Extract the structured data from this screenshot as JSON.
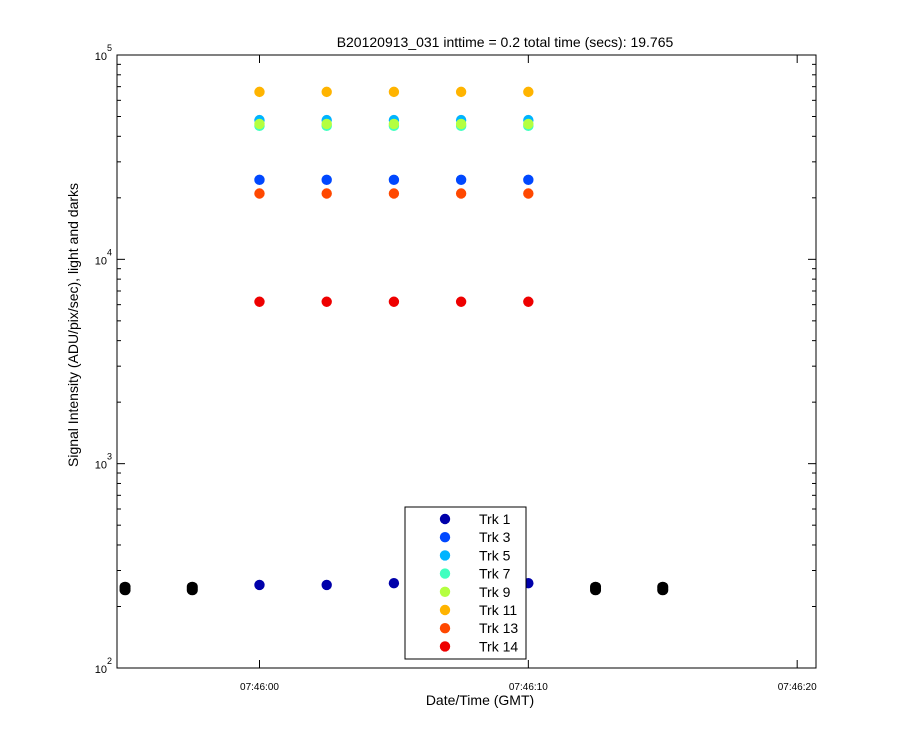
{
  "chart_data": {
    "type": "scatter",
    "title": "B20120913_031 inttime = 0.2 total time (secs): 19.765",
    "xlabel": "Date/Time (GMT)",
    "ylabel": "Signal Intensity (ADU/pix/sec), light and darks",
    "x_unit": "time",
    "xlim": [
      "07:45:54.7",
      "07:46:20.7"
    ],
    "x_ticks": [
      "07:46:00",
      "07:46:10",
      "07:46:20"
    ],
    "y_scale": "log",
    "ylim": [
      100,
      100000
    ],
    "y_ticks": [
      {
        "base": "10",
        "exp": "2",
        "value": 100
      },
      {
        "base": "10",
        "exp": "3",
        "value": 1000
      },
      {
        "base": "10",
        "exp": "4",
        "value": 10000
      },
      {
        "base": "10",
        "exp": "5",
        "value": 100000
      }
    ],
    "legend_position": "bottom-center",
    "series": [
      {
        "name": "Trk 1",
        "color": "#0000aa",
        "points": [
          [
            "07:46:00",
            255
          ],
          [
            "07:46:02.5",
            255
          ],
          [
            "07:46:05",
            260
          ],
          [
            "07:46:07.5",
            260
          ],
          [
            "07:46:10",
            260
          ]
        ]
      },
      {
        "name": "Trk 3",
        "color": "#0048ff",
        "points": [
          [
            "07:46:00",
            24500
          ],
          [
            "07:46:02.5",
            24500
          ],
          [
            "07:46:05",
            24500
          ],
          [
            "07:46:07.5",
            24500
          ],
          [
            "07:46:10",
            24500
          ]
        ]
      },
      {
        "name": "Trk 5",
        "color": "#00b4ff",
        "points": [
          [
            "07:46:00",
            48000
          ],
          [
            "07:46:02.5",
            48000
          ],
          [
            "07:46:05",
            48000
          ],
          [
            "07:46:07.5",
            48000
          ],
          [
            "07:46:10",
            48000
          ]
        ]
      },
      {
        "name": "Trk 7",
        "color": "#40ffc0",
        "points": [
          [
            "07:46:00",
            45000
          ],
          [
            "07:46:02.5",
            45000
          ],
          [
            "07:46:05",
            45000
          ],
          [
            "07:46:07.5",
            45000
          ],
          [
            "07:46:10",
            45000
          ]
        ]
      },
      {
        "name": "Trk 9",
        "color": "#b4ff40",
        "points": [
          [
            "07:46:00",
            46000
          ],
          [
            "07:46:02.5",
            46000
          ],
          [
            "07:46:05",
            46000
          ],
          [
            "07:46:07.5",
            46000
          ],
          [
            "07:46:10",
            46000
          ]
        ]
      },
      {
        "name": "Trk 11",
        "color": "#ffb400",
        "points": [
          [
            "07:46:00",
            66000
          ],
          [
            "07:46:02.5",
            66000
          ],
          [
            "07:46:05",
            66000
          ],
          [
            "07:46:07.5",
            66000
          ],
          [
            "07:46:10",
            66000
          ]
        ]
      },
      {
        "name": "Trk 13",
        "color": "#ff4800",
        "points": [
          [
            "07:46:00",
            21000
          ],
          [
            "07:46:02.5",
            21000
          ],
          [
            "07:46:05",
            21000
          ],
          [
            "07:46:07.5",
            21000
          ],
          [
            "07:46:10",
            21000
          ]
        ]
      },
      {
        "name": "Trk 14",
        "color": "#ee0000",
        "points": [
          [
            "07:46:00",
            6200
          ],
          [
            "07:46:02.5",
            6200
          ],
          [
            "07:46:05",
            6200
          ],
          [
            "07:46:07.5",
            6200
          ],
          [
            "07:46:10",
            6200
          ]
        ]
      }
    ],
    "darks": {
      "color": "#000000",
      "points": [
        [
          "07:45:55",
          240
        ],
        [
          "07:45:55",
          250
        ],
        [
          "07:45:55",
          245
        ],
        [
          "07:45:57.5",
          240
        ],
        [
          "07:45:57.5",
          250
        ],
        [
          "07:45:57.5",
          245
        ],
        [
          "07:46:12.5",
          240
        ],
        [
          "07:46:12.5",
          250
        ],
        [
          "07:46:12.5",
          245
        ],
        [
          "07:46:15",
          240
        ],
        [
          "07:46:15",
          250
        ],
        [
          "07:46:15",
          245
        ]
      ]
    }
  }
}
